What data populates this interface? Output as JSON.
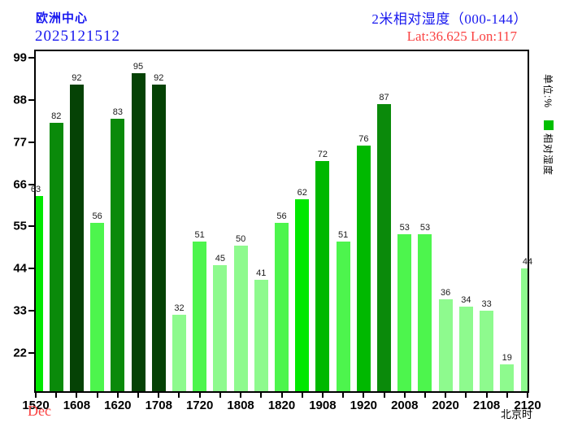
{
  "header": {
    "source": "欧洲中心",
    "run": "2025121512",
    "title": "2米相对湿度（000-144）",
    "latlon": "Lat:36.625  Lon:117"
  },
  "colors": {
    "title_blue": "#1717EF",
    "accent_red": "#FA4242",
    "legend_green": "#00BF00"
  },
  "sidebar": {
    "unit_label": "单位:%",
    "legend_label": "相对湿度"
  },
  "footer": {
    "month_label": "Dec",
    "timezone_label": "北京时"
  },
  "chart_data": {
    "type": "bar",
    "title": "2米相对湿度（000-144）",
    "ylabel": "单位:%",
    "legend": "相对湿度",
    "grid": false,
    "legend_position": "right",
    "ylim": [
      12,
      100.7
    ],
    "y_ticks": [
      22,
      33,
      44,
      55,
      66,
      77,
      88,
      99
    ],
    "x_tick_labels": [
      "1520",
      "1608",
      "1620",
      "1708",
      "1720",
      "1808",
      "1820",
      "1908",
      "1920",
      "2008",
      "2020",
      "2108",
      "2120"
    ],
    "values": [
      63,
      82,
      92,
      56,
      83,
      95,
      92,
      32,
      51,
      45,
      50,
      41,
      56,
      62,
      72,
      51,
      76,
      87,
      53,
      53,
      36,
      34,
      33,
      19,
      44
    ],
    "bar_color_rules": [
      {
        "max": 50,
        "color": "#8EFA8E"
      },
      {
        "max": 60,
        "color": "#4DF54D"
      },
      {
        "max": 70,
        "color": "#00E800"
      },
      {
        "max": 80,
        "color": "#00B800"
      },
      {
        "max": 90,
        "color": "#0A8A0A"
      },
      {
        "max": 100,
        "color": "#054205"
      }
    ]
  }
}
